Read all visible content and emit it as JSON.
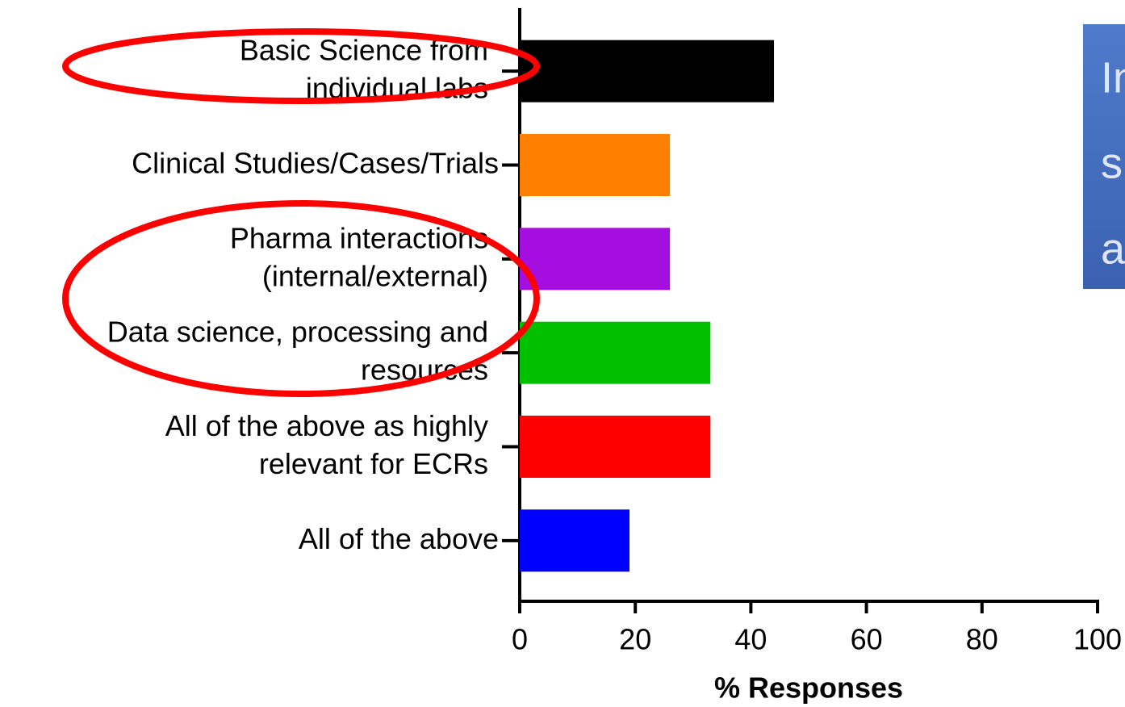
{
  "chart_data": {
    "type": "hbar",
    "categories": [
      "Basic Science from\nindividual labs",
      "Clinical Studies/Cases/Trials",
      "Pharma interactions\n(internal/external)",
      "Data science, processing and\nresources",
      "All of the above as highly\nrelevant for ECRs",
      "All of the above"
    ],
    "values": [
      44,
      26,
      26,
      33,
      33,
      19
    ],
    "colors": [
      "#000000",
      "#ff7f00",
      "#a40fe0",
      "#00c000",
      "#ff0000",
      "#0000ff"
    ],
    "xlim": [
      0,
      100
    ],
    "xticks": [
      0,
      20,
      40,
      60,
      80,
      100
    ],
    "x_label": "% Responses",
    "annotation": [
      "In",
      "s",
      "a"
    ]
  }
}
